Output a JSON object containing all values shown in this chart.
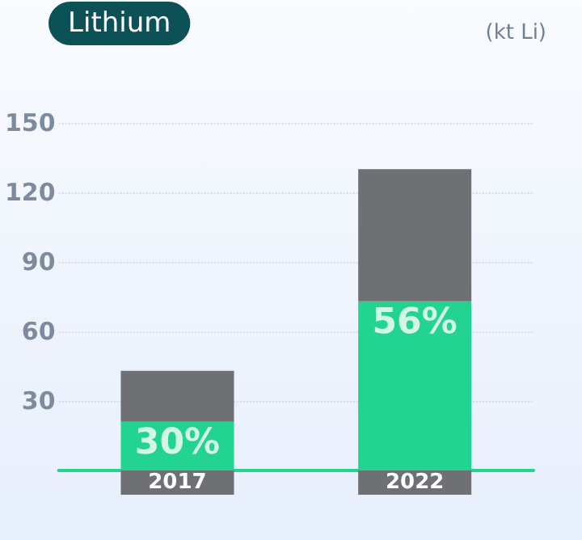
{
  "chart_data": {
    "type": "bar",
    "title": "Lithium",
    "ylabel": "(kt Li)",
    "categories": [
      "2017",
      "2022"
    ],
    "stacked": true,
    "series": [
      {
        "color": "#23d390",
        "values": [
          21,
          73
        ]
      },
      {
        "color": "#6e7073",
        "values": [
          22,
          57
        ]
      }
    ],
    "annotations": [
      "30%",
      "56%"
    ],
    "ylim": [
      0,
      150
    ],
    "yticks": [
      {
        "value": 0,
        "label": null
      },
      30,
      60,
      90,
      120,
      150
    ],
    "grid": "y"
  }
}
